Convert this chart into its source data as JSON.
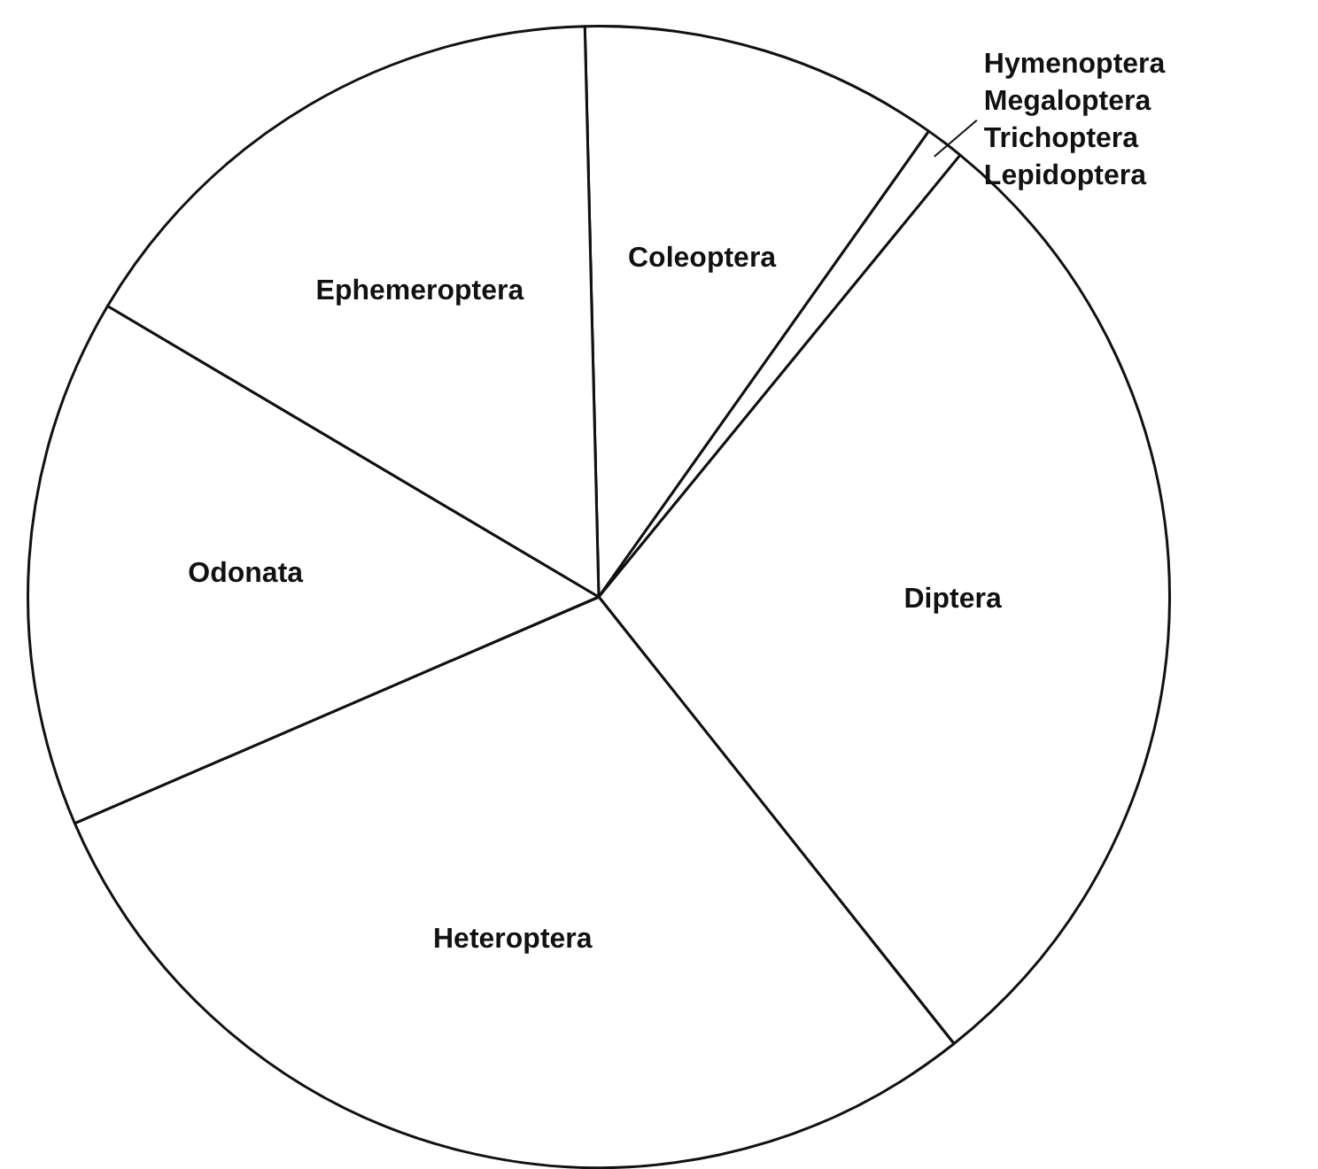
{
  "chart_data": {
    "type": "pie",
    "categories": [
      "Coleoptera",
      "Hymenoptera Megaloptera Trichoptera Lepidoptera",
      "Diptera",
      "Heteroptera",
      "Odonata",
      "Ephemeroptera"
    ],
    "values": [
      10.2,
      1.1,
      28.4,
      29.2,
      15.0,
      16.1
    ],
    "colors": [
      "#ffffff",
      "#ffffff",
      "#ffffff",
      "#ffffff",
      "#ffffff",
      "#ffffff"
    ],
    "legend": false
  }
}
